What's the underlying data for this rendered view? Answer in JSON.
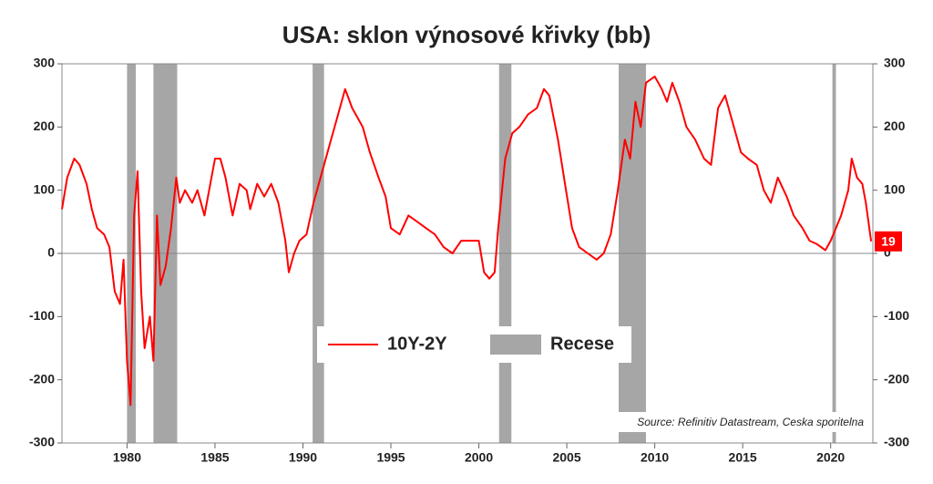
{
  "chart_data": {
    "type": "line",
    "title": "USA: sklon výnosové křivky (bb)",
    "annotation": "Source: Refinitiv Datastream, Ceska sporitelna",
    "xlim": [
      1976.3,
      2022.4
    ],
    "xticks": [
      1980,
      1985,
      1990,
      1995,
      2000,
      2005,
      2010,
      2015,
      2020
    ],
    "ylim": [
      -300,
      300
    ],
    "yticks": [
      -300,
      -200,
      -100,
      0,
      100,
      200,
      300
    ],
    "legend": "bottom-center",
    "recessions": {
      "name": "Recese",
      "color": "#a6a6a6",
      "spans": [
        [
          1980.0,
          1980.5
        ],
        [
          1981.5,
          1982.85
        ],
        [
          1990.55,
          1991.2
        ],
        [
          2001.15,
          2001.85
        ],
        [
          2007.95,
          2009.5
        ],
        [
          2020.1,
          2020.3
        ]
      ]
    },
    "series": [
      {
        "name": "10Y-2Y",
        "color": "#ff0000",
        "x": [
          1976.3,
          1976.6,
          1977.0,
          1977.3,
          1977.7,
          1978.0,
          1978.3,
          1978.7,
          1979.0,
          1979.3,
          1979.6,
          1979.8,
          1980.0,
          1980.2,
          1980.4,
          1980.6,
          1980.8,
          1981.0,
          1981.3,
          1981.5,
          1981.7,
          1981.9,
          1982.2,
          1982.5,
          1982.8,
          1983.0,
          1983.3,
          1983.7,
          1984.0,
          1984.4,
          1984.8,
          1985.0,
          1985.3,
          1985.6,
          1986.0,
          1986.4,
          1986.8,
          1987.0,
          1987.4,
          1987.8,
          1988.2,
          1988.6,
          1989.0,
          1989.2,
          1989.5,
          1989.8,
          1990.2,
          1990.6,
          1991.0,
          1991.5,
          1992.0,
          1992.4,
          1992.8,
          1993.4,
          1993.8,
          1994.3,
          1994.7,
          1995.0,
          1995.5,
          1996.0,
          1996.5,
          1997.0,
          1997.5,
          1998.0,
          1998.5,
          1999.0,
          1999.5,
          2000.0,
          2000.3,
          2000.6,
          2000.9,
          2001.1,
          2001.5,
          2001.9,
          2002.3,
          2002.8,
          2003.3,
          2003.7,
          2004.0,
          2004.5,
          2004.9,
          2005.3,
          2005.7,
          2006.2,
          2006.7,
          2007.1,
          2007.5,
          2007.9,
          2008.3,
          2008.6,
          2008.9,
          2009.2,
          2009.5,
          2010.0,
          2010.4,
          2010.7,
          2011.0,
          2011.4,
          2011.8,
          2012.3,
          2012.8,
          2013.2,
          2013.6,
          2014.0,
          2014.5,
          2014.9,
          2015.3,
          2015.8,
          2016.2,
          2016.6,
          2017.0,
          2017.5,
          2017.9,
          2018.4,
          2018.8,
          2019.2,
          2019.7,
          2020.0,
          2020.3,
          2020.6,
          2021.0,
          2021.2,
          2021.5,
          2021.8,
          2022.0,
          2022.2,
          2022.3
        ],
        "values": [
          70,
          120,
          150,
          140,
          110,
          70,
          40,
          30,
          10,
          -60,
          -80,
          -10,
          -170,
          -240,
          60,
          130,
          -60,
          -150,
          -100,
          -170,
          60,
          -50,
          -20,
          40,
          120,
          80,
          100,
          80,
          100,
          60,
          120,
          150,
          150,
          120,
          60,
          110,
          100,
          70,
          110,
          90,
          110,
          80,
          20,
          -30,
          0,
          20,
          30,
          80,
          120,
          170,
          220,
          260,
          230,
          200,
          160,
          120,
          90,
          40,
          30,
          60,
          50,
          40,
          30,
          10,
          0,
          20,
          20,
          20,
          -30,
          -40,
          -30,
          40,
          150,
          190,
          200,
          220,
          230,
          260,
          250,
          180,
          110,
          40,
          10,
          0,
          -10,
          0,
          30,
          100,
          180,
          150,
          240,
          200,
          270,
          280,
          260,
          240,
          270,
          240,
          200,
          180,
          150,
          140,
          230,
          250,
          200,
          160,
          150,
          140,
          100,
          80,
          120,
          90,
          60,
          40,
          20,
          15,
          5,
          20,
          40,
          60,
          100,
          150,
          120,
          110,
          80,
          40,
          19
        ]
      }
    ]
  }
}
